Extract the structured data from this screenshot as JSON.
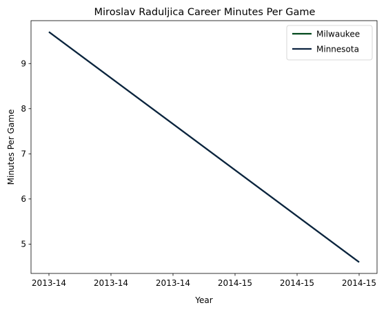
{
  "chart_data": {
    "type": "line",
    "title": "Miroslav Raduljica Career Minutes Per Game",
    "xlabel": "Year",
    "ylabel": "Minutes Per Game",
    "x_tick_labels": [
      "2013-14",
      "2013-14",
      "2013-14",
      "2014-15",
      "2014-15",
      "2014-15"
    ],
    "x": [
      0,
      1
    ],
    "x_labels": [
      "2013-14",
      "2014-15"
    ],
    "ylim": [
      4.35,
      9.95
    ],
    "yticks": [
      5,
      6,
      7,
      8,
      9
    ],
    "grid": false,
    "legend_position": "top-right",
    "series": [
      {
        "name": "Milwaukee",
        "color": "#00471B",
        "values": [
          9.7,
          4.6
        ]
      },
      {
        "name": "Minnesota",
        "color": "#0C2340",
        "values": [
          9.7,
          4.6
        ]
      }
    ]
  }
}
